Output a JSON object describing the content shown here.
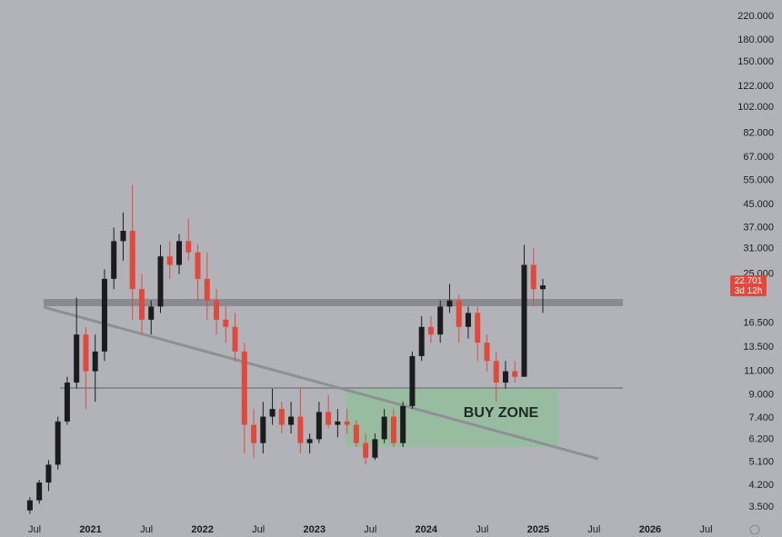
{
  "chart_data": {
    "type": "candlestick",
    "log_scale": true,
    "up_color": "#1c1c1e",
    "down_color": "#e2483c",
    "x": [
      "2020-06",
      "2020-07",
      "2020-08",
      "2020-09",
      "2020-10",
      "2020-11",
      "2020-12",
      "2021-01",
      "2021-02",
      "2021-03",
      "2021-04",
      "2021-05",
      "2021-06",
      "2021-07",
      "2021-08",
      "2021-09",
      "2021-10",
      "2021-11",
      "2021-12",
      "2022-01",
      "2022-02",
      "2022-03",
      "2022-04",
      "2022-05",
      "2022-06",
      "2022-07",
      "2022-08",
      "2022-09",
      "2022-10",
      "2022-11",
      "2022-12",
      "2023-01",
      "2023-02",
      "2023-03",
      "2023-04",
      "2023-05",
      "2023-06",
      "2023-07",
      "2023-08",
      "2023-09",
      "2023-10",
      "2023-11",
      "2023-12",
      "2024-01",
      "2024-02",
      "2024-03",
      "2024-04",
      "2024-05",
      "2024-06",
      "2024-07",
      "2024-08",
      "2024-09",
      "2024-10",
      "2024-11",
      "2024-12",
      "2025-01"
    ],
    "open": [
      3.4,
      3.7,
      4.3,
      5.0,
      7.2,
      10,
      15,
      11,
      13,
      24,
      33,
      36,
      22,
      17,
      19,
      29,
      27,
      33,
      30,
      24,
      20,
      17,
      16,
      13,
      7,
      6,
      7.5,
      8,
      7,
      7.5,
      6,
      6.2,
      7.8,
      7,
      7.2,
      7,
      6,
      5.3,
      6.2,
      7.5,
      6,
      8.2,
      12.5,
      16,
      15,
      19,
      20,
      16,
      18,
      14,
      12,
      10,
      11,
      10.5,
      27,
      22
    ],
    "high": [
      3.8,
      4.4,
      5.2,
      7.5,
      10.5,
      20.5,
      16,
      15,
      26,
      37,
      42,
      53,
      25,
      20,
      32,
      33,
      35,
      40,
      32,
      30,
      22,
      19,
      18,
      14,
      8,
      8.5,
      9.5,
      8.5,
      8.5,
      9.5,
      6.5,
      8.5,
      9,
      8,
      8,
      7.3,
      6.5,
      6.5,
      8,
      8,
      8.5,
      13,
      17.5,
      17.5,
      20,
      23,
      21,
      19,
      19,
      15,
      13,
      12,
      12,
      32,
      31,
      24
    ],
    "low": [
      3.3,
      3.6,
      4.0,
      4.8,
      7.0,
      9.5,
      8,
      8.5,
      12,
      22,
      28,
      17,
      15,
      15,
      18,
      24,
      25,
      28,
      20,
      17,
      15,
      14,
      12,
      5.5,
      5.3,
      5.5,
      7,
      6.5,
      6.5,
      5.5,
      5.5,
      6,
      6.8,
      6.3,
      6.5,
      5.8,
      5,
      5.2,
      6,
      5.8,
      5.8,
      8,
      12,
      14,
      14,
      18,
      14,
      14.5,
      12,
      11,
      8.5,
      9.5,
      10,
      10.5,
      19,
      18
    ],
    "close": [
      3.7,
      4.3,
      5.0,
      7.2,
      10,
      15,
      11,
      13,
      24,
      33,
      36,
      22,
      17,
      19,
      29,
      27,
      33,
      30,
      24,
      20,
      17,
      16,
      13,
      7,
      6,
      7.5,
      8,
      7,
      7.5,
      6,
      6.2,
      7.8,
      7,
      7.2,
      7,
      6,
      5.3,
      6.2,
      7.5,
      6,
      8.2,
      12.5,
      16,
      15,
      19,
      20,
      16,
      18,
      14,
      12,
      10,
      11,
      10.5,
      27,
      22,
      22.701
    ],
    "xlim": [
      "2020-03",
      "2026-09"
    ],
    "xticks": [
      {
        "value": "2020-07",
        "label": "Jul"
      },
      {
        "value": "2021-01",
        "label": "2021"
      },
      {
        "value": "2021-07",
        "label": "Jul"
      },
      {
        "value": "2022-01",
        "label": "2022"
      },
      {
        "value": "2022-07",
        "label": "Jul"
      },
      {
        "value": "2023-01",
        "label": "2023"
      },
      {
        "value": "2023-07",
        "label": "Jul"
      },
      {
        "value": "2024-01",
        "label": "2024"
      },
      {
        "value": "2024-07",
        "label": "Jul"
      },
      {
        "value": "2025-01",
        "label": "2025"
      },
      {
        "value": "2025-07",
        "label": "Jul"
      },
      {
        "value": "2026-01",
        "label": "2026"
      },
      {
        "value": "2026-07",
        "label": "Jul"
      }
    ],
    "ylim": [
      3.07,
      252.6
    ],
    "yticks": [
      {
        "value": 220,
        "label": "220.000"
      },
      {
        "value": 180,
        "label": "180.000"
      },
      {
        "value": 150,
        "label": "150.000"
      },
      {
        "value": 122,
        "label": "122.000"
      },
      {
        "value": 102,
        "label": "102.000"
      },
      {
        "value": 82,
        "label": "82.000"
      },
      {
        "value": 67,
        "label": "67.000"
      },
      {
        "value": 55,
        "label": "55.000"
      },
      {
        "value": 45,
        "label": "45.000"
      },
      {
        "value": 37,
        "label": "37.000"
      },
      {
        "value": 31,
        "label": "31.000"
      },
      {
        "value": 25,
        "label": "25.000"
      },
      {
        "value": 16.5,
        "label": "16.500"
      },
      {
        "value": 13.5,
        "label": "13.500"
      },
      {
        "value": 11,
        "label": "11.000"
      },
      {
        "value": 9,
        "label": "9.000"
      },
      {
        "value": 7.4,
        "label": "7.400"
      },
      {
        "value": 6.2,
        "label": "6.200"
      },
      {
        "value": 5.1,
        "label": "5.100"
      },
      {
        "value": 4.2,
        "label": "4.200"
      },
      {
        "value": 3.5,
        "label": "3.500"
      }
    ],
    "countdown": "3d 12h",
    "annotation": "BUY ZONE"
  }
}
